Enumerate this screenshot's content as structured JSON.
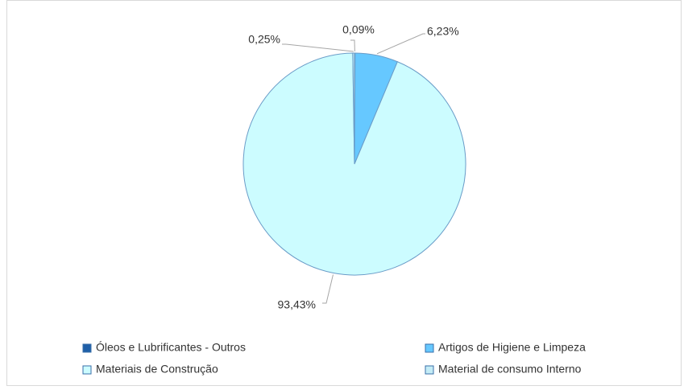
{
  "chart_data": {
    "type": "pie",
    "categories": [
      "Óleos e Lubrificantes - Outros",
      "Artigos de Higiene e Limpeza",
      "Materiais de Construção",
      "Material de consumo Interno"
    ],
    "values": [
      0.09,
      6.23,
      93.43,
      0.25
    ],
    "value_labels": [
      "0,09%",
      "6,23%",
      "93,43%",
      "0,25%"
    ],
    "colors": [
      "#1f5fa8",
      "#66c8ff",
      "#ccfcff",
      "#c4ecf6"
    ],
    "legend": "bottom"
  }
}
